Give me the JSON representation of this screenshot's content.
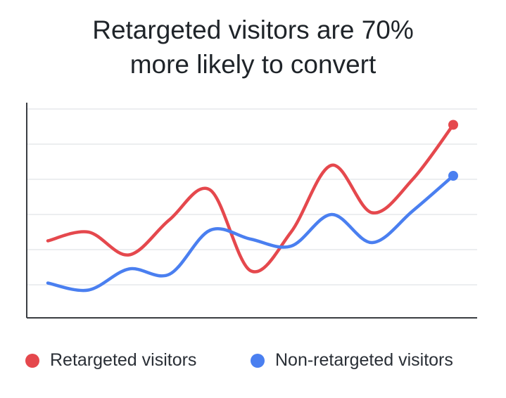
{
  "chart_data": {
    "type": "line",
    "title_lines": [
      "Retargeted visitors are 70%",
      "more likely to convert"
    ],
    "xlabel": "",
    "ylabel": "",
    "ylim": [
      0,
      6
    ],
    "grid": true,
    "legend_position": "bottom",
    "x": [
      0,
      1,
      2,
      3,
      4,
      5,
      6,
      7,
      8,
      9,
      10
    ],
    "series": [
      {
        "name": "Retargeted visitors",
        "color": "#e5484d",
        "values": [
          2.25,
          2.5,
          1.85,
          2.85,
          3.7,
          1.4,
          2.5,
          4.4,
          3.05,
          4.0,
          5.55
        ],
        "end_marker": true
      },
      {
        "name": "Non-retargeted visitors",
        "color": "#4a7ff0",
        "values": [
          1.05,
          0.85,
          1.45,
          1.3,
          2.55,
          2.3,
          2.1,
          3.0,
          2.2,
          3.1,
          4.1
        ],
        "end_marker": true
      }
    ]
  }
}
